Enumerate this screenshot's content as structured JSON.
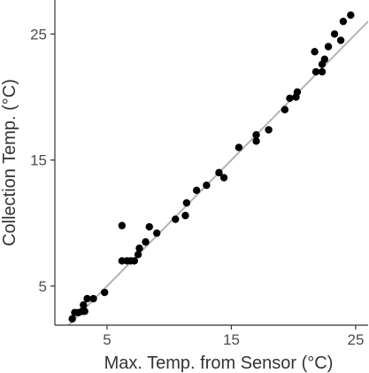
{
  "chart_data": {
    "type": "scatter",
    "xlabel": "Max. Temp. from Sensor (°C)",
    "ylabel": "Collection Temp. (°C)",
    "xlim": [
      0.8,
      26
    ],
    "ylim": [
      1.9,
      27.7
    ],
    "xticks": [
      5,
      15,
      25
    ],
    "yticks": [
      5,
      15,
      25
    ],
    "grid": false,
    "reference_line": {
      "slope": 1,
      "intercept": 0,
      "color": "#b3b3b3"
    },
    "point_color": "#000000",
    "points": [
      {
        "x": 2.2,
        "y": 2.4
      },
      {
        "x": 2.4,
        "y": 2.9
      },
      {
        "x": 2.7,
        "y": 2.9
      },
      {
        "x": 3.0,
        "y": 3.0
      },
      {
        "x": 3.1,
        "y": 3.5
      },
      {
        "x": 3.2,
        "y": 3.0
      },
      {
        "x": 3.4,
        "y": 4.0
      },
      {
        "x": 3.9,
        "y": 4.0
      },
      {
        "x": 4.8,
        "y": 4.5
      },
      {
        "x": 6.2,
        "y": 9.8
      },
      {
        "x": 6.2,
        "y": 7.0
      },
      {
        "x": 6.6,
        "y": 7.0
      },
      {
        "x": 6.9,
        "y": 7.0
      },
      {
        "x": 7.2,
        "y": 7.0
      },
      {
        "x": 7.5,
        "y": 7.5
      },
      {
        "x": 7.6,
        "y": 8.0
      },
      {
        "x": 8.1,
        "y": 8.5
      },
      {
        "x": 8.4,
        "y": 9.7
      },
      {
        "x": 9.0,
        "y": 9.2
      },
      {
        "x": 10.5,
        "y": 10.3
      },
      {
        "x": 11.3,
        "y": 10.6
      },
      {
        "x": 11.4,
        "y": 11.6
      },
      {
        "x": 12.2,
        "y": 12.6
      },
      {
        "x": 13.0,
        "y": 13.0
      },
      {
        "x": 14.0,
        "y": 14.0
      },
      {
        "x": 14.4,
        "y": 13.6
      },
      {
        "x": 15.6,
        "y": 16.0
      },
      {
        "x": 17.0,
        "y": 16.5
      },
      {
        "x": 17.0,
        "y": 17.0
      },
      {
        "x": 18.0,
        "y": 17.4
      },
      {
        "x": 19.3,
        "y": 19.0
      },
      {
        "x": 19.7,
        "y": 19.9
      },
      {
        "x": 20.2,
        "y": 20.0
      },
      {
        "x": 20.3,
        "y": 20.4
      },
      {
        "x": 21.7,
        "y": 23.6
      },
      {
        "x": 21.8,
        "y": 22.0
      },
      {
        "x": 22.3,
        "y": 22.0
      },
      {
        "x": 22.3,
        "y": 22.6
      },
      {
        "x": 22.5,
        "y": 23.0
      },
      {
        "x": 22.8,
        "y": 24.0
      },
      {
        "x": 23.3,
        "y": 25.0
      },
      {
        "x": 23.8,
        "y": 24.5
      },
      {
        "x": 24.0,
        "y": 26.0
      },
      {
        "x": 24.6,
        "y": 26.5
      }
    ]
  }
}
